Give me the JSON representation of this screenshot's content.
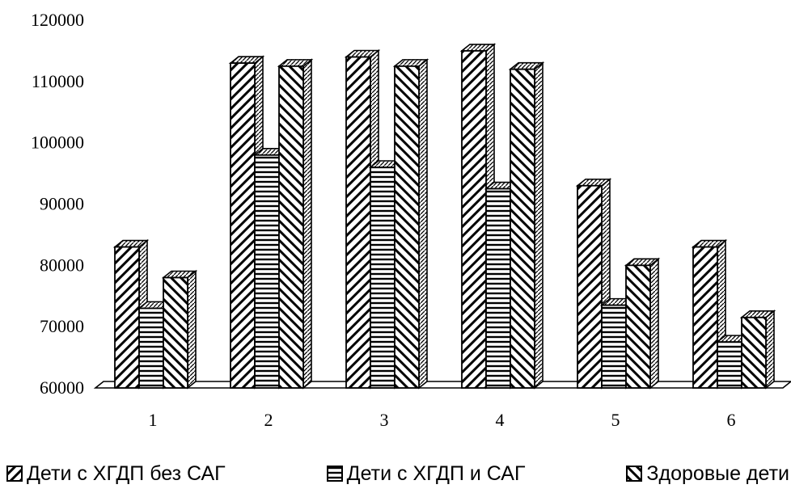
{
  "chart_data": {
    "type": "bar",
    "title": "",
    "xlabel": "",
    "ylabel": "",
    "categories": [
      "1",
      "2",
      "3",
      "4",
      "5",
      "6"
    ],
    "ylim": [
      60000,
      120000
    ],
    "yticks": [
      "60000",
      "70000",
      "80000",
      "90000",
      "100000",
      "110000",
      "120000"
    ],
    "grid": false,
    "legend_position": "bottom",
    "series": [
      {
        "name": "Дети с ХГДП без САГ",
        "pattern": "diagonal-up",
        "values": [
          83000,
          113000,
          114000,
          115000,
          93000,
          83000
        ]
      },
      {
        "name": "Дети с ХГДП и САГ",
        "pattern": "horizontal",
        "values": [
          73000,
          98000,
          96000,
          92500,
          73500,
          67500
        ]
      },
      {
        "name": "Здоровые дети",
        "pattern": "diagonal-down",
        "values": [
          78000,
          112500,
          112500,
          112000,
          80000,
          71500
        ]
      }
    ]
  }
}
